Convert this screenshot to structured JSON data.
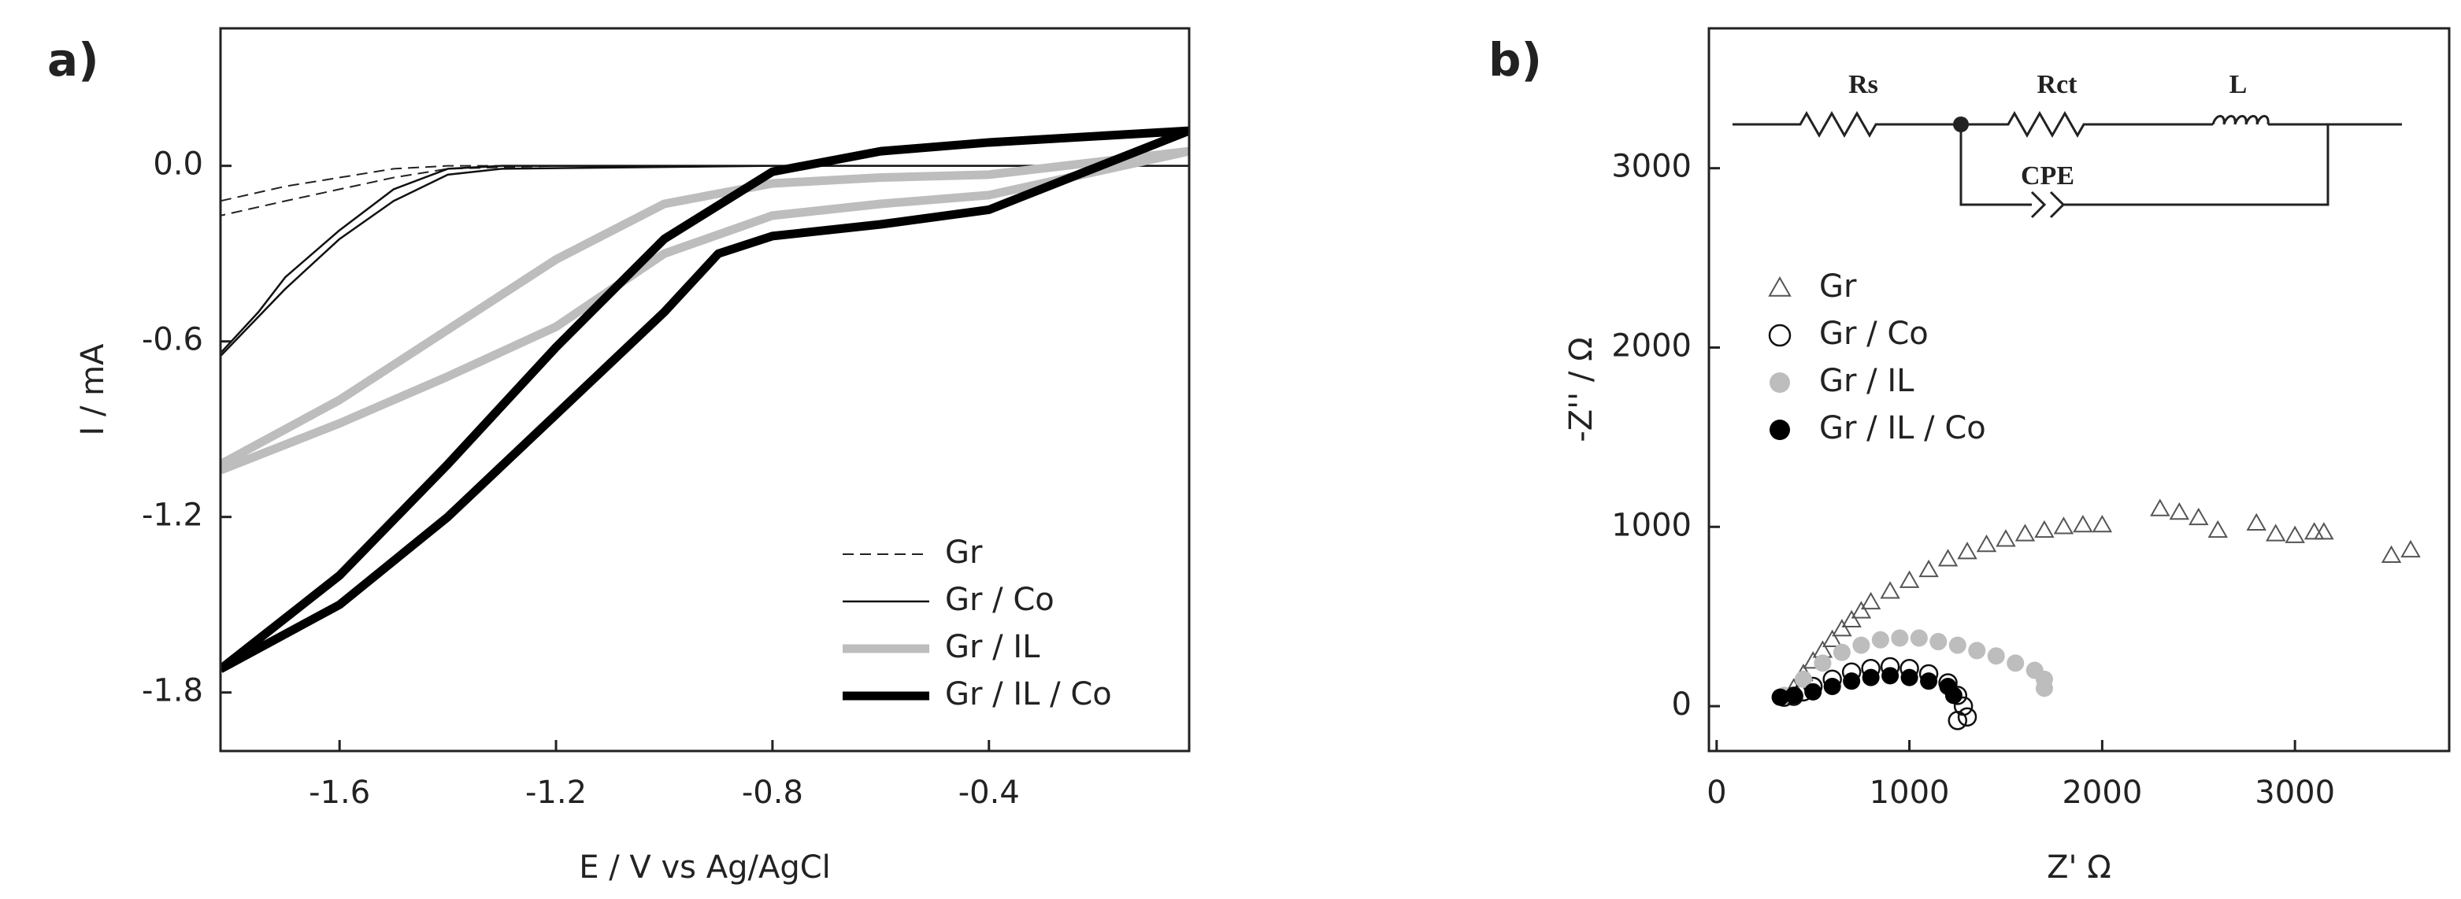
{
  "chart_data": [
    {
      "type": "line",
      "panel_label": "a)",
      "xlabel": "E / V vs Ag/AgCl",
      "ylabel": "I / mA",
      "xlim": [
        -1.82,
        -0.03
      ],
      "ylim": [
        -2.0,
        0.47
      ],
      "xticks": [
        -1.6,
        -1.2,
        -0.8,
        -0.4
      ],
      "yticks": [
        {
          "value": 0,
          "label": "0.0"
        },
        -0.6,
        -1.2,
        -1.8
      ],
      "legend": "lower right",
      "series": [
        {
          "name": "Gr",
          "color": "#222222",
          "linestyle": "dashed",
          "linewidth": 2,
          "x": [
            -1.82,
            -1.7,
            -1.6,
            -1.5,
            -1.4,
            -1.2,
            -0.8,
            -0.4,
            -0.03,
            -0.4,
            -0.8,
            -1.2,
            -1.4,
            -1.5,
            -1.6,
            -1.7,
            -1.82
          ],
          "values": [
            -0.12,
            -0.07,
            -0.04,
            -0.01,
            0.0,
            0.0,
            0.0,
            0.0,
            0.0,
            0.0,
            0.0,
            0.0,
            -0.01,
            -0.04,
            -0.08,
            -0.12,
            -0.17
          ]
        },
        {
          "name": "Gr / Co",
          "color": "#111111",
          "linestyle": "solid",
          "linewidth": 2.5,
          "x": [
            -1.82,
            -1.75,
            -1.7,
            -1.6,
            -1.5,
            -1.4,
            -1.3,
            -0.8,
            -0.03,
            -0.8,
            -1.3,
            -1.4,
            -1.5,
            -1.6,
            -1.7,
            -1.82
          ],
          "values": [
            -0.64,
            -0.5,
            -0.38,
            -0.22,
            -0.08,
            -0.01,
            0.0,
            0.0,
            0.0,
            0.0,
            -0.01,
            -0.03,
            -0.12,
            -0.25,
            -0.42,
            -0.65
          ]
        },
        {
          "name": "Gr / IL",
          "color": "#bdbdbd",
          "linestyle": "solid",
          "linewidth": 11,
          "x": [
            -1.82,
            -1.6,
            -1.4,
            -1.2,
            -1.0,
            -0.8,
            -0.6,
            -0.4,
            -0.03,
            -0.4,
            -0.6,
            -0.8,
            -1.0,
            -1.2,
            -1.4,
            -1.6,
            -1.82
          ],
          "values": [
            -1.02,
            -0.8,
            -0.56,
            -0.32,
            -0.13,
            -0.06,
            -0.04,
            -0.03,
            0.05,
            -0.1,
            -0.13,
            -0.17,
            -0.3,
            -0.55,
            -0.72,
            -0.88,
            -1.04
          ]
        },
        {
          "name": "Gr / IL / Co",
          "color": "#000000",
          "linestyle": "solid",
          "linewidth": 11,
          "x": [
            -1.82,
            -1.6,
            -1.4,
            -1.2,
            -1.0,
            -0.8,
            -0.6,
            -0.4,
            -0.03,
            -0.4,
            -0.6,
            -0.8,
            -0.9,
            -1.0,
            -1.2,
            -1.4,
            -1.6,
            -1.82
          ],
          "values": [
            -1.72,
            -1.4,
            -1.02,
            -0.62,
            -0.25,
            -0.02,
            0.05,
            0.08,
            0.12,
            -0.15,
            -0.2,
            -0.24,
            -0.3,
            -0.5,
            -0.85,
            -1.2,
            -1.5,
            -1.72
          ]
        }
      ]
    },
    {
      "type": "scatter",
      "panel_label": "b)",
      "xlabel": "Z'  Ω",
      "ylabel": "-Z'' / Ω",
      "xlim": [
        -40,
        3800
      ],
      "ylim": [
        -250,
        3780
      ],
      "xticks": [
        0,
        1000,
        2000,
        3000
      ],
      "yticks": [
        0,
        1000,
        2000,
        3000
      ],
      "legend": "upper left",
      "annotations": [
        "Rs",
        "Rct",
        "L",
        "CPE"
      ],
      "series": [
        {
          "name": "Gr",
          "color": "#555555",
          "marker": "triangle",
          "filled": false,
          "x": [
            400,
            450,
            500,
            550,
            600,
            650,
            700,
            750,
            800,
            900,
            1000,
            1100,
            1200,
            1300,
            1400,
            1500,
            1600,
            1700,
            1800,
            1900,
            2000,
            2300,
            2400,
            2500,
            2600,
            2800,
            2900,
            3000,
            3100,
            3150,
            3500,
            3600
          ],
          "values": [
            100,
            180,
            250,
            310,
            370,
            430,
            480,
            530,
            580,
            640,
            700,
            760,
            820,
            860,
            900,
            930,
            960,
            980,
            1000,
            1010,
            1010,
            1100,
            1080,
            1050,
            980,
            1020,
            960,
            950,
            970,
            970,
            840,
            870
          ]
        },
        {
          "name": "Gr / Co",
          "color": "#111111",
          "marker": "circle",
          "filled": false,
          "x": [
            350,
            400,
            450,
            500,
            600,
            700,
            800,
            900,
            1000,
            1100,
            1200,
            1250,
            1280,
            1300,
            1250
          ],
          "values": [
            50,
            55,
            80,
            110,
            150,
            190,
            210,
            220,
            210,
            180,
            130,
            60,
            0,
            -60,
            -80
          ]
        },
        {
          "name": "Gr / IL",
          "color": "#bdbdbd",
          "marker": "circle",
          "filled": true,
          "x": [
            350,
            450,
            550,
            650,
            750,
            850,
            950,
            1050,
            1150,
            1250,
            1350,
            1450,
            1550,
            1650,
            1700,
            1700
          ],
          "values": [
            60,
            150,
            240,
            300,
            340,
            370,
            380,
            380,
            360,
            340,
            310,
            280,
            240,
            200,
            150,
            100
          ]
        },
        {
          "name": "Gr / IL / Co",
          "color": "#000000",
          "marker": "circle",
          "filled": true,
          "x": [
            330,
            400,
            500,
            600,
            700,
            800,
            900,
            1000,
            1100,
            1200,
            1230
          ],
          "values": [
            50,
            60,
            80,
            110,
            140,
            160,
            170,
            160,
            140,
            110,
            60
          ]
        }
      ]
    }
  ]
}
